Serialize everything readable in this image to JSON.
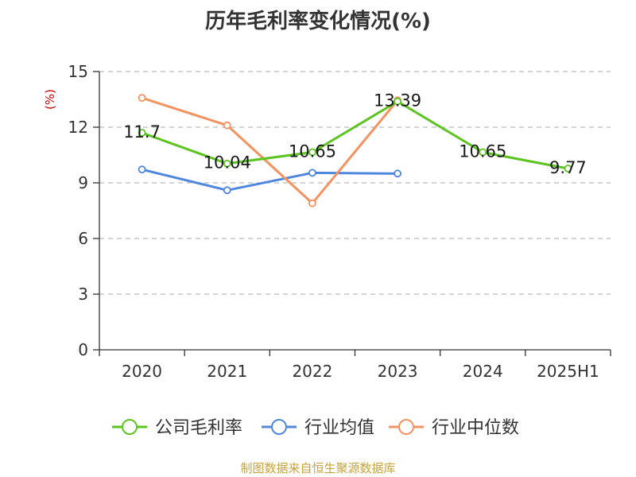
{
  "chart_data": {
    "type": "line",
    "title": "历年毛利率变化情况(%)",
    "ylabel": "(%)",
    "xlabel": "",
    "categories": [
      "2020",
      "2021",
      "2022",
      "2023",
      "2024",
      "2025H1"
    ],
    "ylim": [
      0,
      15
    ],
    "yticks": [
      0,
      3,
      6,
      9,
      12,
      15
    ],
    "grid": true,
    "legend_position": "bottom",
    "series": [
      {
        "name": "公司毛利率",
        "color": "#5cc41f",
        "values": [
          11.7,
          10.04,
          10.65,
          13.39,
          10.65,
          9.77
        ],
        "labels": [
          "11.7",
          "10.04",
          "10.65",
          "13.39",
          "10.65",
          "9.77"
        ]
      },
      {
        "name": "行业均值",
        "color": "#4f86de",
        "values": [
          9.72,
          8.6,
          9.54,
          9.5,
          null,
          null
        ],
        "labels": []
      },
      {
        "name": "行业中位数",
        "color": "#f4935f",
        "values": [
          13.58,
          12.1,
          7.9,
          13.45,
          null,
          null
        ],
        "labels": []
      }
    ]
  },
  "source": "制图数据来自恒生聚源数据库",
  "colors": {
    "ylabel": "#cc0000",
    "axis": "#333333",
    "grid": "#bbbbbb",
    "source": "#c8a23c"
  }
}
